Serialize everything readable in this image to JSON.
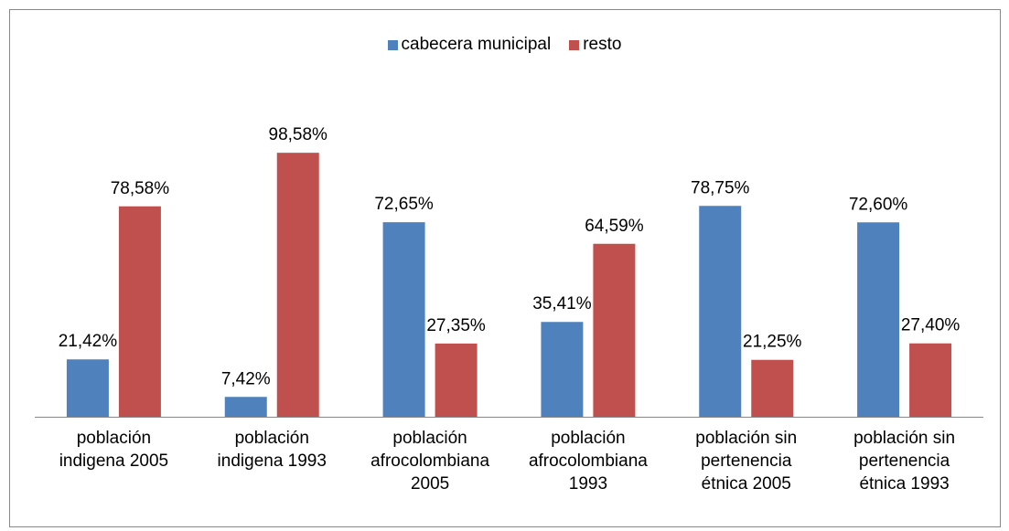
{
  "chart_data": {
    "type": "bar",
    "categories": [
      "población indigena 2005",
      "población indigena 1993",
      "población afrocolombiana 2005",
      "población afrocolombiana 1993",
      "población sin pertenencia étnica 2005",
      "población sin pertenencia étnica 1993"
    ],
    "series": [
      {
        "name": "cabecera municipal",
        "color": "#4f81bd",
        "values": [
          21.42,
          7.42,
          72.65,
          35.41,
          78.75,
          72.6
        ],
        "value_labels": [
          "21,42%",
          "7,42%",
          "72,65%",
          "35,41%",
          "78,75%",
          "72,60%"
        ]
      },
      {
        "name": "resto",
        "color": "#c0504d",
        "values": [
          78.58,
          98.58,
          27.35,
          64.59,
          21.25,
          27.4
        ],
        "value_labels": [
          "78,58%",
          "98,58%",
          "27,35%",
          "64,59%",
          "21,25%",
          "27,40%"
        ]
      }
    ],
    "legend": "top"
  }
}
